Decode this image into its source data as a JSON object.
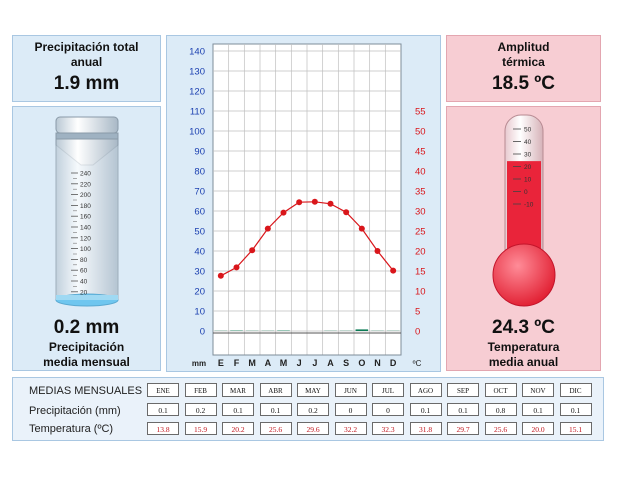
{
  "precip_total": {
    "title_line1": "Precipitación total",
    "title_line2": "anual",
    "value": "1.9 mm"
  },
  "precip_month": {
    "value": "0.2 mm",
    "label_line1": "Precipitación",
    "label_line2": "media mensual"
  },
  "amplitude": {
    "title_line1": "Amplitud",
    "title_line2": "térmica",
    "value": "18.5 ºC"
  },
  "temp_annual": {
    "value": "24.3 ºC",
    "label_line1": "Temperatura",
    "label_line2": "media anual"
  },
  "cylinder_ticks": [
    "240",
    "220",
    "200",
    "180",
    "160",
    "140",
    "120",
    "100",
    "80",
    "60",
    "40",
    "20"
  ],
  "thermo_ticks": [
    "50",
    "40",
    "30",
    "20",
    "10",
    "0",
    "-10"
  ],
  "thermo_fill_value": 24.3,
  "chart_data": {
    "type": "line",
    "x_label": "mm",
    "unit_right": "ºC",
    "categories": [
      "E",
      "F",
      "M",
      "A",
      "M",
      "J",
      "J",
      "A",
      "S",
      "O",
      "N",
      "D"
    ],
    "y_left_ticks": [
      0,
      10,
      20,
      30,
      40,
      50,
      60,
      70,
      80,
      90,
      100,
      110,
      120,
      130,
      140
    ],
    "y_right_ticks": [
      0,
      5,
      10,
      15,
      20,
      25,
      30,
      35,
      40,
      45,
      50,
      55
    ],
    "ylim_left": [
      0,
      140
    ],
    "ylim_right": [
      0,
      70
    ],
    "series": [
      {
        "type": "line",
        "color": "#d9161b",
        "axis": "right",
        "values": [
          13.8,
          15.9,
          20.2,
          25.6,
          29.6,
          32.2,
          32.3,
          31.8,
          29.7,
          25.6,
          20.0,
          15.1
        ]
      },
      {
        "type": "bar",
        "color": "#0b7b55",
        "axis": "left",
        "values": [
          0.1,
          0.2,
          0.1,
          0.1,
          0.2,
          0,
          0,
          0.1,
          0.1,
          0.8,
          0.1,
          0.1
        ]
      }
    ],
    "grid": true
  },
  "table": {
    "header_label": "MEDIAS MENSUALES",
    "months": [
      "ENE",
      "FEB",
      "MAR",
      "ABR",
      "MAY",
      "JUN",
      "JUL",
      "AGO",
      "SEP",
      "OCT",
      "NOV",
      "DIC"
    ],
    "precip_label": "Precipitación (mm)",
    "precip_values": [
      "0.1",
      "0.2",
      "0.1",
      "0.1",
      "0.2",
      "0",
      "0",
      "0.1",
      "0.1",
      "0.8",
      "0.1",
      "0.1"
    ],
    "temp_label": "Temperatura (ºC)",
    "temp_values": [
      "13.8",
      "15.9",
      "20.2",
      "25.6",
      "29.6",
      "32.2",
      "32.3",
      "31.8",
      "29.7",
      "25.6",
      "20.0",
      "15.1"
    ]
  },
  "colors": {
    "accent_red": "#d9161b",
    "panel_blue": "#dcebf7",
    "panel_pink": "#f7cdd3"
  }
}
